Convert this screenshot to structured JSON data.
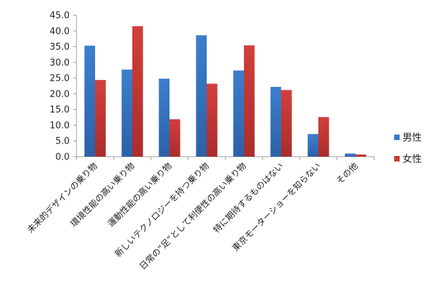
{
  "chart_data": {
    "type": "bar",
    "title": "",
    "xlabel": "",
    "ylabel": "",
    "ylim": [
      0,
      45
    ],
    "yticks": [
      "0.0",
      "5.0",
      "10.0",
      "15.0",
      "20.0",
      "25.0",
      "30.0",
      "35.0",
      "40.0",
      "45.0"
    ],
    "grid": false,
    "legend_position": "right",
    "categories": [
      "未来的デザインの乗り物",
      "環境性能の高い乗り物",
      "運動性能の高い乗り物",
      "新しいテクノロジーを持つ乗り物",
      "日常の“足”として利便性の高い乗り物",
      "特に期待するものはない",
      "東京モーターショーを知らない",
      "その他"
    ],
    "series": [
      {
        "name": "男性",
        "color": "#3a78c3",
        "color_dark": "#2a5ea3",
        "values": [
          35.3,
          27.7,
          24.8,
          38.6,
          27.4,
          22.2,
          7.2,
          1.0
        ]
      },
      {
        "name": "女性",
        "color": "#cc3b38",
        "color_dark": "#a82c2a",
        "values": [
          24.4,
          41.5,
          11.9,
          23.2,
          35.4,
          21.2,
          12.6,
          0.7
        ]
      }
    ]
  }
}
